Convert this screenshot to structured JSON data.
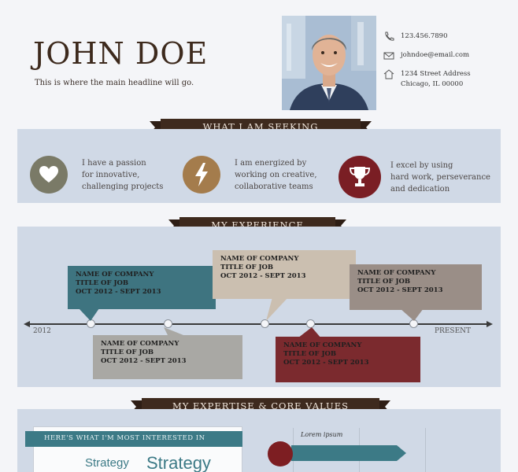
{
  "header": {
    "name": "JOHN DOE",
    "headline": "This is where the main headline will go."
  },
  "contact": {
    "phone": "123.456.7890",
    "email": "johndoe@email.com",
    "address_line1": "1234 Street Address",
    "address_line2": "Chicago, IL 00000"
  },
  "sections": {
    "seeking": "WHAT I AM SEEKING",
    "experience": "MY EXPERIENCE",
    "expertise": "MY EXPERTISE & CORE VALUES"
  },
  "seeking": [
    {
      "icon": "heart-icon",
      "color": "#7a7a67",
      "lines": [
        "I have a passion",
        "for innovative,",
        "challenging projects"
      ]
    },
    {
      "icon": "lightning-icon",
      "color": "#a47c4c",
      "lines": [
        "I am energized by",
        "working on creative,",
        "collaborative teams"
      ]
    },
    {
      "icon": "trophy-icon",
      "color": "#7a1e24",
      "lines": [
        "I excel by using",
        "hard work, perseverance",
        "and dedication"
      ]
    }
  ],
  "timeline": {
    "start_label": "2012",
    "end_label": "PRESENT",
    "jobs": [
      {
        "company": "NAME OF COMPANY",
        "title": "TITLE OF JOB",
        "dates": "OCT 2012 - SEPT 2013",
        "color": "#3e7480"
      },
      {
        "company": "NAME OF COMPANY",
        "title": "TITLE OF JOB",
        "dates": "OCT 2012 - SEPT 2013",
        "color": "#a9a8a4"
      },
      {
        "company": "NAME OF COMPANY",
        "title": "TITLE OF JOB",
        "dates": "OCT 2012 - SEPT 2013",
        "color": "#cbbfb0"
      },
      {
        "company": "NAME OF COMPANY",
        "title": "TITLE OF JOB",
        "dates": "OCT 2012 - SEPT 2013",
        "color": "#7b2a2e"
      },
      {
        "company": "NAME OF COMPANY",
        "title": "TITLE OF JOB",
        "dates": "OCT 2012 - SEPT 2013",
        "color": "#9a8e87"
      }
    ]
  },
  "expertise": {
    "interest_banner": "HERE'S WHAT I'M MOST INTERESTED IN",
    "cloud_word_1": "Strategy",
    "cloud_word_2": "Strategy",
    "chart_label": "Lorem ipsum"
  },
  "colors": {
    "brown_dark": "#3e2a1e",
    "panel": "#d0d9e6",
    "teal": "#3c7a86",
    "maroon": "#7d1e22"
  }
}
